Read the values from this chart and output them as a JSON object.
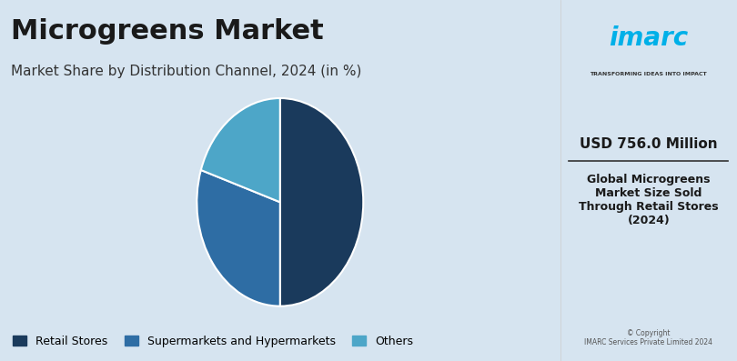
{
  "title": "Microgreens Market",
  "subtitle": "Market Share by Distribution Channel, 2024 (in %)",
  "slices": [
    50.0,
    30.0,
    20.0
  ],
  "labels": [
    "Retail Stores",
    "Supermarkets and Hypermarkets",
    "Others"
  ],
  "colors": [
    "#1a3a5c",
    "#2e6da4",
    "#4da6c8"
  ],
  "background_color": "#d6e4f0",
  "right_panel_bg": "#ffffff",
  "usd_text": "USD 756.0 Million",
  "desc_text": "Global Microgreens\nMarket Size Sold\nThrough Retail Stores\n(2024)",
  "copyright_text": "© Copyright\nIMARC Services Private Limited 2024",
  "start_angle": 90,
  "legend_fontsize": 9,
  "title_fontsize": 22,
  "subtitle_fontsize": 11
}
